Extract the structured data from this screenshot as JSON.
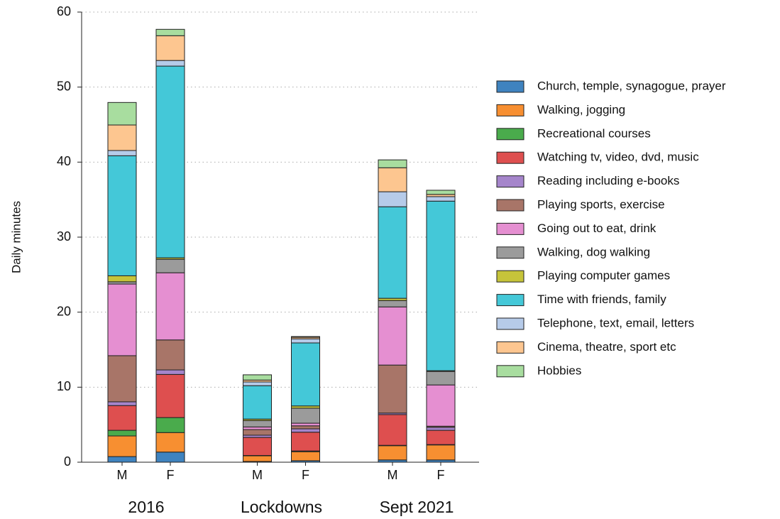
{
  "chart_data": {
    "type": "stacked-bar",
    "y_label": "Daily minutes",
    "groups": [
      {
        "name": "2016",
        "categories": [
          "M",
          "F"
        ]
      },
      {
        "name": "Lockdowns",
        "categories": [
          "M",
          "F"
        ]
      },
      {
        "name": "Sept 2021",
        "categories": [
          "M",
          "F"
        ]
      }
    ],
    "ylim": [
      0,
      60
    ],
    "yticks": [
      0,
      10,
      20,
      30,
      40,
      50,
      60
    ],
    "grid": true,
    "legend": "right",
    "series": [
      {
        "name": "Church, temple, synagogue, prayer",
        "color": "#3f83bf",
        "values": [
          0.75,
          1.35,
          0.1,
          0.2,
          0.3,
          0.3
        ]
      },
      {
        "name": "Walking, jogging",
        "color": "#f78f31",
        "values": [
          2.75,
          2.6,
          0.75,
          1.2,
          1.9,
          2.0
        ]
      },
      {
        "name": "Recreational courses",
        "color": "#4aab4c",
        "values": [
          0.75,
          2.0,
          0.05,
          0.1,
          0.05,
          0.05
        ]
      },
      {
        "name": "Watching tv, video, dvd, music",
        "color": "#de4f4f",
        "values": [
          3.3,
          5.75,
          2.4,
          2.5,
          4.1,
          1.9
        ]
      },
      {
        "name": "Reading including e-books",
        "color": "#a585cb",
        "values": [
          0.5,
          0.6,
          0.3,
          0.45,
          0.2,
          0.4
        ]
      },
      {
        "name": "Playing sports, exercise",
        "color": "#a87568",
        "values": [
          6.15,
          4.0,
          0.75,
          0.4,
          6.4,
          0.15
        ]
      },
      {
        "name": "Going out to eat, drink",
        "color": "#e58fd1",
        "values": [
          9.55,
          8.95,
          0.35,
          0.35,
          7.75,
          5.5
        ]
      },
      {
        "name": "Walking, dog walking",
        "color": "#9b9b9b",
        "values": [
          0.3,
          1.8,
          0.85,
          2.0,
          0.85,
          1.8
        ]
      },
      {
        "name": "Playing computer games",
        "color": "#c6c43a",
        "values": [
          0.8,
          0.2,
          0.2,
          0.3,
          0.3,
          0.1
        ]
      },
      {
        "name": "Time with friends, family",
        "color": "#44c8d8",
        "values": [
          16.0,
          25.55,
          4.45,
          8.4,
          12.2,
          22.6
        ]
      },
      {
        "name": "Telephone, text, email, letters",
        "color": "#b6cbe9",
        "values": [
          0.7,
          0.75,
          0.5,
          0.55,
          2.0,
          0.6
        ]
      },
      {
        "name": "Cinema, theatre, sport etc",
        "color": "#fdc690",
        "values": [
          3.4,
          3.3,
          0.25,
          0.2,
          3.2,
          0.3
        ]
      },
      {
        "name": "Hobbies",
        "color": "#a8dd9f",
        "values": [
          3.0,
          0.85,
          0.7,
          0.1,
          1.05,
          0.55
        ]
      }
    ]
  }
}
